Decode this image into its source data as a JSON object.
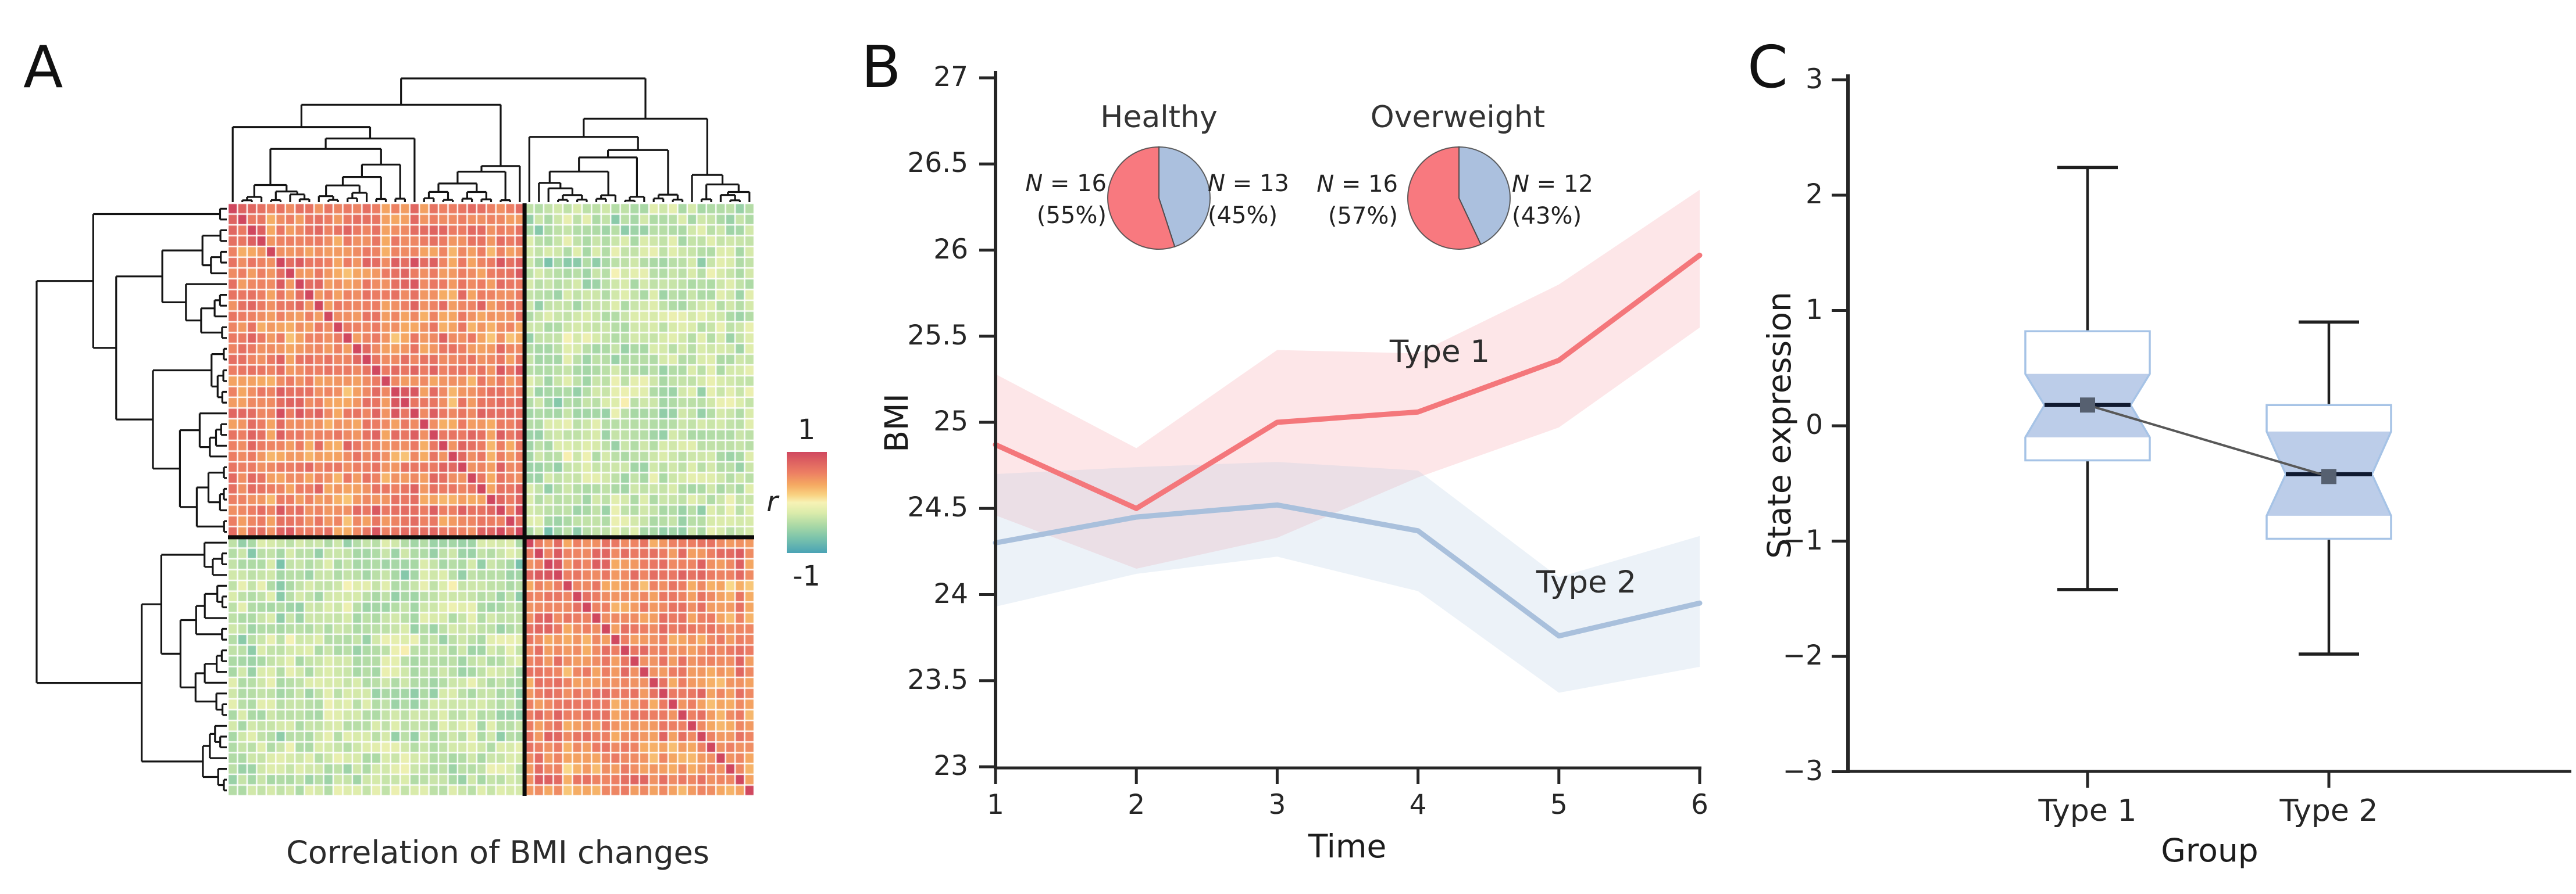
{
  "chart_data": [
    {
      "panel_letter": "A",
      "type": "heatmap",
      "title": "Correlation of BMI changes",
      "colorbar": {
        "label": "r",
        "max_label": "1",
        "min_label": "-1",
        "stops": [
          {
            "v": 1.0,
            "c": "#d0485f"
          },
          {
            "v": 0.6,
            "c": "#ec7d63"
          },
          {
            "v": 0.35,
            "c": "#f5a962"
          },
          {
            "v": 0.15,
            "c": "#f9d281"
          },
          {
            "v": 0.0,
            "c": "#f7f2b5"
          },
          {
            "v": -0.2,
            "c": "#dcecab"
          },
          {
            "v": -0.45,
            "c": "#abd9a5"
          },
          {
            "v": -0.7,
            "c": "#7cc4ab"
          },
          {
            "v": -1.0,
            "c": "#4aa3b5"
          }
        ]
      },
      "matrix": {
        "n_items": 55,
        "cluster_split": 31,
        "seed": 20417,
        "value_range": [
          -1,
          1
        ],
        "note": "clustered correlation matrix; two main clusters (warm within-cluster, cool between-cluster), unit diagonal; cells regenerated procedurally to match the visual pattern"
      },
      "divider_lines": {
        "after_column": 31,
        "after_row": 31,
        "color": "#0a0a0a"
      },
      "dendrograms": {
        "top_seed": 91,
        "left_seed": 45
      }
    },
    {
      "panel_letter": "B",
      "type": "line",
      "xlabel": "Time",
      "ylabel": "BMI",
      "x": [
        1,
        2,
        3,
        4,
        5,
        6
      ],
      "xtick_labels": [
        "1",
        "2",
        "3",
        "4",
        "5",
        "6"
      ],
      "yticks": [
        23,
        23.5,
        24,
        24.5,
        25,
        25.5,
        26,
        26.5,
        27
      ],
      "ytick_labels": [
        "23",
        "23.5",
        "24",
        "24.5",
        "25",
        "25.5",
        "26",
        "26.5",
        "27"
      ],
      "ylim": [
        23,
        27
      ],
      "xlim": [
        1,
        6
      ],
      "series": [
        {
          "name": "Type 1",
          "color": "#f4777b",
          "band_color": "rgba(244,130,140,0.20)",
          "values": [
            24.87,
            24.5,
            25.0,
            25.06,
            25.36,
            25.97
          ],
          "band_upper": [
            25.28,
            24.85,
            25.42,
            25.4,
            25.8,
            26.35
          ],
          "band_lower": [
            24.46,
            24.15,
            24.33,
            24.68,
            24.97,
            25.55
          ]
        },
        {
          "name": "Type 2",
          "color": "#a9c0dc",
          "band_color": "rgba(170,194,222,0.22)",
          "values": [
            24.3,
            24.45,
            24.52,
            24.37,
            23.76,
            23.95
          ],
          "band_upper": [
            24.7,
            24.74,
            24.77,
            24.72,
            24.1,
            24.34
          ],
          "band_lower": [
            23.93,
            24.12,
            24.22,
            24.02,
            23.43,
            23.58
          ]
        }
      ],
      "annotations": [
        {
          "text": "Type 1",
          "x": 4.15,
          "y": 25.4
        },
        {
          "text": "Type 2",
          "x": 5.19,
          "y": 24.06
        }
      ],
      "pies": [
        {
          "title": "Healthy",
          "slices": [
            {
              "side": "left",
              "n": 16,
              "pct": 55,
              "n_prefix": "N",
              "n_eq": " = 16",
              "pct_label": "(55%)",
              "color": "#f8797f"
            },
            {
              "side": "right",
              "n": 13,
              "pct": 45,
              "n_prefix": "N",
              "n_eq": " = 13",
              "pct_label": "(45%)",
              "color": "#abc0de"
            }
          ]
        },
        {
          "title": "Overweight",
          "slices": [
            {
              "side": "left",
              "n": 16,
              "pct": 57,
              "n_prefix": "N",
              "n_eq": " = 16",
              "pct_label": "(57%)",
              "color": "#f8797f"
            },
            {
              "side": "right",
              "n": 12,
              "pct": 43,
              "n_prefix": "N",
              "n_eq": " = 12",
              "pct_label": "(43%)",
              "color": "#abc0de"
            }
          ]
        }
      ]
    },
    {
      "panel_letter": "C",
      "type": "box",
      "xlabel": "Group",
      "ylabel": "State expression",
      "categories": [
        "Type 1",
        "Type 2"
      ],
      "ylim": [
        -3,
        3
      ],
      "yticks": [
        -3,
        -2,
        -1,
        0,
        1,
        2,
        3
      ],
      "ytick_labels": [
        "−3",
        "−2",
        "−1",
        "0",
        "1",
        "2",
        "3"
      ],
      "boxes": [
        {
          "group": "Type 1",
          "whisker_low": -1.42,
          "q1": -0.3,
          "notch_low": -0.1,
          "median": 0.18,
          "mean": 0.18,
          "notch_high": 0.45,
          "q3": 0.82,
          "whisker_high": 2.24
        },
        {
          "group": "Type 2",
          "whisker_low": -1.98,
          "q1": -0.98,
          "notch_low": -0.78,
          "median": -0.42,
          "mean": -0.44,
          "notch_high": -0.05,
          "q3": 0.18,
          "whisker_high": 0.9
        }
      ],
      "mean_connector": true,
      "style": {
        "box_stroke": "#a6c3e6",
        "notch_fill": "#bccde9",
        "median_color": "#101a30",
        "mean_color": "#566070",
        "whisker_color": "#1f1f1f",
        "connector_color": "#585858"
      }
    }
  ]
}
